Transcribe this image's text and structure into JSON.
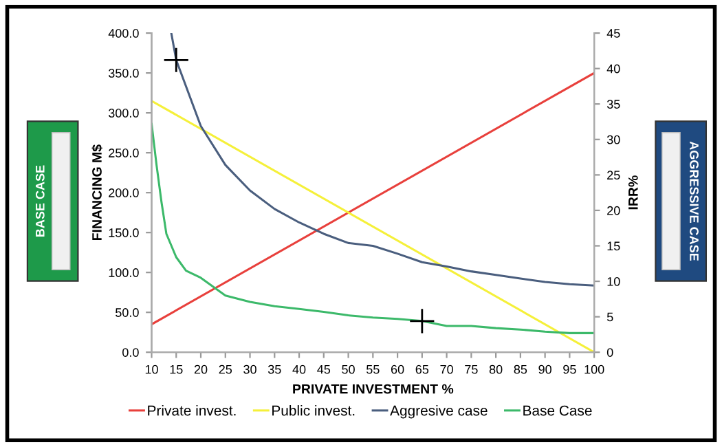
{
  "chart_data": {
    "type": "line",
    "xlabel": "PRIVATE INVESTMENT %",
    "ylabel": "FINANCING M$",
    "y2label": "IRR%",
    "xlim": [
      10,
      100
    ],
    "xticks": [
      10,
      15,
      20,
      25,
      30,
      35,
      40,
      45,
      50,
      55,
      60,
      65,
      70,
      75,
      80,
      85,
      90,
      95,
      100
    ],
    "ylim": [
      0,
      400
    ],
    "yticks": [
      {
        "value": 0,
        "label": "0.0"
      },
      {
        "value": 50,
        "label": "50.0"
      },
      {
        "value": 100,
        "label": "100.0"
      },
      {
        "value": 150,
        "label": "150.0"
      },
      {
        "value": 200,
        "label": "200.0"
      },
      {
        "value": 250,
        "label": "250.0"
      },
      {
        "value": 300,
        "label": "300.0"
      },
      {
        "value": 350,
        "label": "350.0"
      },
      {
        "value": 400,
        "label": "400.0"
      }
    ],
    "y2lim": [
      0,
      45
    ],
    "y2ticks": [
      0,
      5,
      10,
      15,
      20,
      25,
      30,
      35,
      40,
      45
    ],
    "grid": false,
    "legend": "bottom",
    "marker": "none",
    "line_style": "solid",
    "annotations": [
      "BASE CASE",
      "AGGRESSIVE CASE"
    ],
    "series": [
      {
        "name": "Private invest.",
        "color": "#e8403c",
        "x": [
          10,
          100
        ],
        "values": [
          35,
          350
        ]
      },
      {
        "name": "Public invest.",
        "color": "#f5f03a",
        "x": [
          10,
          100
        ],
        "values": [
          315,
          0
        ]
      },
      {
        "name": "Aggresive case",
        "color": "#4a5e7e",
        "axis": "y2",
        "x": [
          14,
          15,
          20,
          25,
          30,
          35,
          40,
          45,
          50,
          55,
          60,
          65,
          70,
          75,
          80,
          85,
          90,
          95,
          100
        ],
        "values": [
          45,
          41.2,
          31.9,
          26.4,
          22.8,
          20.2,
          18.3,
          16.7,
          15.4,
          15.0,
          13.9,
          12.7,
          12.1,
          11.4,
          10.9,
          10.4,
          9.9,
          9.6,
          9.4
        ]
      },
      {
        "name": "Base Case",
        "color": "#3cb96a",
        "axis": "y2",
        "x": [
          10,
          11,
          12,
          13,
          15,
          17,
          20,
          25,
          30,
          35,
          40,
          45,
          50,
          55,
          60,
          65,
          70,
          75,
          80,
          85,
          90,
          95,
          100
        ],
        "values": [
          32.2,
          26.4,
          21.2,
          16.7,
          13.4,
          11.5,
          10.5,
          8.0,
          7.1,
          6.5,
          6.1,
          5.7,
          5.2,
          4.9,
          4.7,
          4.4,
          3.7,
          3.7,
          3.4,
          3.2,
          2.9,
          2.7,
          2.7
        ]
      },
      {
        "type": "scatter",
        "color": "#000000",
        "axis": "y2",
        "marker": "cross",
        "x": [
          15,
          65
        ],
        "values": [
          41.2,
          4.4
        ]
      }
    ]
  }
}
